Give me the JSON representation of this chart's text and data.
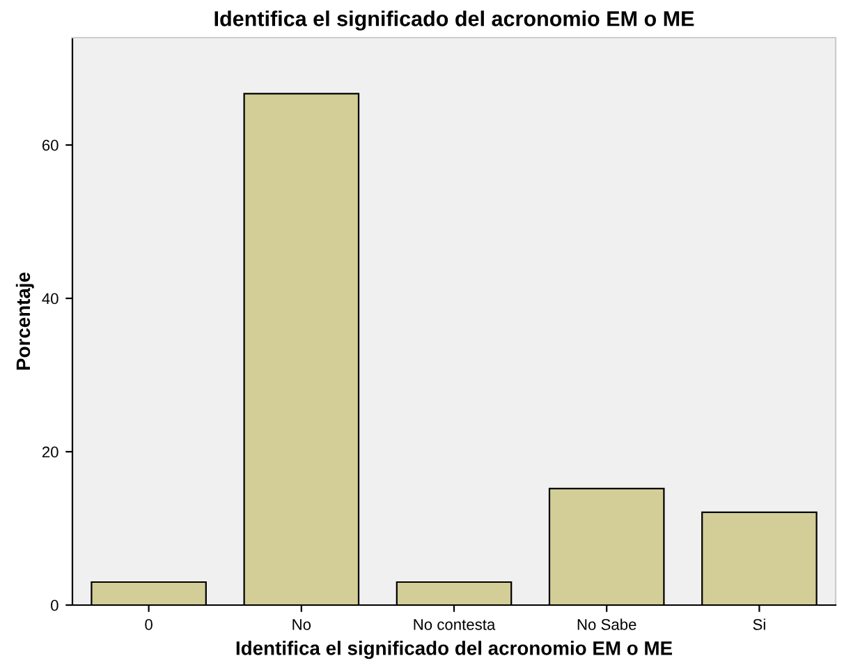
{
  "chart_data": {
    "type": "bar",
    "title": "Identifica el significado del acronomio EM o ME",
    "xlabel": "Identifica el significado del acronomio EM o ME",
    "ylabel": "Porcentaje",
    "categories": [
      "0",
      "No",
      "No contesta",
      "No Sabe",
      "Si"
    ],
    "values": [
      3.0,
      66.7,
      3.0,
      15.2,
      12.1
    ],
    "color": "#d3ce97",
    "ylim": [
      0,
      74
    ],
    "yticks": [
      0,
      20,
      40,
      60
    ],
    "grid": false,
    "legend": false
  }
}
